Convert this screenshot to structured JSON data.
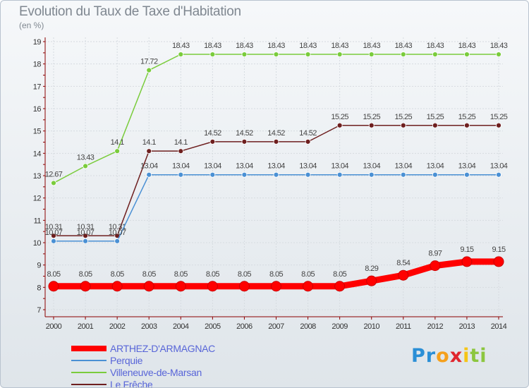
{
  "chart_data": {
    "type": "line",
    "title": "Evolution du Taux de Taxe d'Habitation",
    "subtitle": "(en %)",
    "x": [
      "2000",
      "2001",
      "2002",
      "2003",
      "2004",
      "2005",
      "2006",
      "2007",
      "2008",
      "2009",
      "2010",
      "2011",
      "2012",
      "2013",
      "2014"
    ],
    "ylim": [
      7,
      19
    ],
    "yticks": [
      7,
      8,
      9,
      10,
      11,
      12,
      13,
      14,
      15,
      16,
      17,
      18,
      19
    ],
    "grid": true,
    "legend_position": "bottom-left",
    "series": [
      {
        "name": "ARTHEZ-D'ARMAGNAC",
        "color": "#ff0000",
        "values": [
          8.05,
          8.05,
          8.05,
          8.05,
          8.05,
          8.05,
          8.05,
          8.05,
          8.05,
          8.05,
          8.29,
          8.54,
          8.97,
          9.15,
          9.15
        ],
        "labels": [
          "8.05",
          "8.05",
          "8.05",
          "8.05",
          "8.05",
          "8.05",
          "8.05",
          "8.05",
          "8.05",
          "8.05",
          "8.29",
          "8.54",
          "8.97",
          "9.15",
          "9.15"
        ]
      },
      {
        "name": "Perquie",
        "color": "#4a90d4",
        "values": [
          10.07,
          10.07,
          10.07,
          13.04,
          13.04,
          13.04,
          13.04,
          13.04,
          13.04,
          13.04,
          13.04,
          13.04,
          13.04,
          13.04,
          13.04
        ],
        "labels": [
          "10.07",
          "10.07",
          "10.07",
          "13.04",
          "13.04",
          "13.04",
          "13.04",
          "13.04",
          "13.04",
          "13.04",
          "13.04",
          "13.04",
          "13.04",
          "13.04",
          "13.04"
        ]
      },
      {
        "name": "Villeneuve-de-Marsan",
        "color": "#7acc3c",
        "values": [
          12.67,
          13.43,
          14.1,
          17.72,
          18.43,
          18.43,
          18.43,
          18.43,
          18.43,
          18.43,
          18.43,
          18.43,
          18.43,
          18.43,
          18.43
        ],
        "labels": [
          "12.67",
          "13.43",
          "14.1",
          "17.72",
          "18.43",
          "18.43",
          "18.43",
          "18.43",
          "18.43",
          "18.43",
          "18.43",
          "18.43",
          "18.43",
          "18.43",
          "18.43"
        ]
      },
      {
        "name": "Le Frêche",
        "color": "#6e1f1f",
        "values": [
          10.31,
          10.31,
          10.31,
          14.1,
          14.1,
          14.52,
          14.52,
          14.52,
          14.52,
          15.25,
          15.25,
          15.25,
          15.25,
          15.25,
          15.25
        ],
        "labels": [
          "10.31",
          "10.31",
          "10.31",
          "14.1",
          "14.1",
          "14.52",
          "14.52",
          "14.52",
          "14.52",
          "15.25",
          "15.25",
          "15.25",
          "15.25",
          "15.25",
          "15.25"
        ]
      }
    ]
  },
  "logo": {
    "letters": [
      "P",
      "r",
      "o",
      "x",
      "i",
      "t",
      "i"
    ],
    "colors": [
      "#2b8fd6",
      "#2b8fd6",
      "#f5a01c",
      "#e0262e",
      "#f5c518",
      "#8cc63f",
      "#8cc63f"
    ]
  }
}
